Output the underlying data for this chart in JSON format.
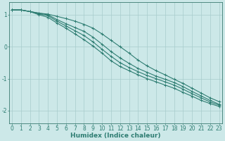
{
  "xlabel": "Humidex (Indice chaleur)",
  "x": [
    0,
    1,
    2,
    3,
    4,
    5,
    6,
    7,
    8,
    9,
    10,
    11,
    12,
    13,
    14,
    15,
    16,
    17,
    18,
    19,
    20,
    21,
    22,
    23
  ],
  "lines": [
    [
      1.15,
      1.15,
      1.1,
      1.05,
      1.02,
      0.95,
      0.88,
      0.8,
      0.7,
      0.58,
      0.4,
      0.2,
      0.0,
      -0.2,
      -0.42,
      -0.6,
      -0.75,
      -0.88,
      -1.02,
      -1.15,
      -1.3,
      -1.45,
      -1.6,
      -1.72
    ],
    [
      1.15,
      1.15,
      1.1,
      1.05,
      1.0,
      0.85,
      0.72,
      0.6,
      0.48,
      0.3,
      0.08,
      -0.15,
      -0.35,
      -0.52,
      -0.68,
      -0.8,
      -0.92,
      -1.02,
      -1.12,
      -1.25,
      -1.4,
      -1.54,
      -1.68,
      -1.8
    ],
    [
      1.15,
      1.15,
      1.1,
      1.03,
      0.97,
      0.8,
      0.65,
      0.5,
      0.35,
      0.15,
      -0.08,
      -0.3,
      -0.5,
      -0.65,
      -0.78,
      -0.9,
      -1.0,
      -1.1,
      -1.2,
      -1.33,
      -1.47,
      -1.6,
      -1.73,
      -1.83
    ],
    [
      1.15,
      1.15,
      1.1,
      1.0,
      0.92,
      0.74,
      0.58,
      0.4,
      0.22,
      0.02,
      -0.2,
      -0.44,
      -0.62,
      -0.75,
      -0.88,
      -1.0,
      -1.1,
      -1.2,
      -1.3,
      -1.43,
      -1.55,
      -1.68,
      -1.78,
      -1.87
    ]
  ],
  "line_color": "#2e7d72",
  "marker": "+",
  "marker_size": 3.5,
  "line_width": 0.8,
  "bg_color": "#cce8e8",
  "grid_color": "#a8cccc",
  "axis_color": "#3a7a70",
  "tick_color": "#2e7d72",
  "label_color": "#2e7d72",
  "ylim": [
    -2.4,
    1.4
  ],
  "yticks": [
    -2,
    -1,
    0,
    1
  ],
  "xlim": [
    -0.3,
    23.3
  ],
  "xticks": [
    0,
    1,
    2,
    3,
    4,
    5,
    6,
    7,
    8,
    9,
    10,
    11,
    12,
    13,
    14,
    15,
    16,
    17,
    18,
    19,
    20,
    21,
    22,
    23
  ],
  "label_fontsize": 6.5,
  "tick_fontsize": 5.5
}
